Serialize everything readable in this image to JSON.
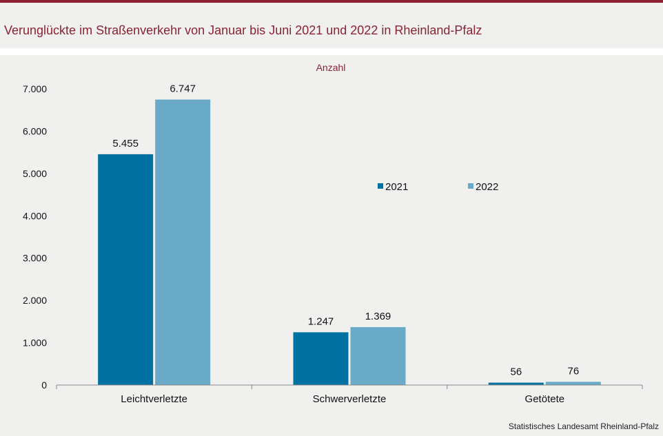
{
  "title": "Verunglückte im Straßenverkehr von Januar bis Juni 2021 und 2022 in Rheinland-Pfalz",
  "source": "Statistisches Landesamt  Rheinland-Pfalz",
  "colors": {
    "accent": "#8b2233",
    "series_2021": "#0071a1",
    "series_2022": "#69aac8"
  },
  "chart_data": {
    "type": "bar",
    "ylabel": "Anzahl",
    "categories": [
      "Leichtverletzte",
      "Schwerverletzte",
      "Getötete"
    ],
    "series": [
      {
        "name": "2021",
        "values": [
          5455,
          1247,
          56
        ],
        "labels": [
          "5.455",
          "1.247",
          "56"
        ]
      },
      {
        "name": "2022",
        "values": [
          6747,
          1369,
          76
        ],
        "labels": [
          "6.747",
          "1.369",
          "76"
        ]
      }
    ],
    "ylim": [
      0,
      7000
    ],
    "yticks": [
      0,
      1000,
      2000,
      3000,
      4000,
      5000,
      6000,
      7000
    ],
    "ytick_labels": [
      "0",
      "1.000",
      "2.000",
      "3.000",
      "4.000",
      "5.000",
      "6.000",
      "7.000"
    ],
    "grid": false,
    "legend_position": "center-right"
  }
}
